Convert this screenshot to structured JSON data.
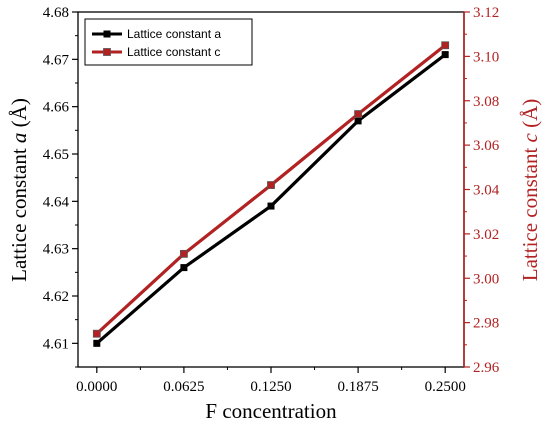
{
  "chart_data": {
    "type": "line",
    "x": [
      0.0,
      0.0625,
      0.125,
      0.1875,
      0.25
    ],
    "x_tick_labels": [
      "0.0000",
      "0.0625",
      "0.1250",
      "0.1875",
      "0.2500"
    ],
    "xlabel": "F concentration",
    "ylabel_left_prefix": "Lattice constant ",
    "ylabel_left_var": "a",
    "ylabel_left_unit": " (Å)",
    "ylabel_right_prefix": "Lattice constant ",
    "ylabel_right_var": "c",
    "ylabel_right_unit": " (Å)",
    "ylim_left": [
      4.605,
      4.68
    ],
    "ylim_right": [
      2.96,
      3.12
    ],
    "y_left_ticks": [
      "4.61",
      "4.62",
      "4.63",
      "4.64",
      "4.65",
      "4.66",
      "4.67",
      "4.68"
    ],
    "y_right_ticks": [
      "2.96",
      "2.98",
      "3.00",
      "3.02",
      "3.04",
      "3.06",
      "3.08",
      "3.10",
      "3.12"
    ],
    "series": [
      {
        "name": "Lattice constant a",
        "axis": "left",
        "color": "#000000",
        "marker": "square",
        "values": [
          4.61,
          4.626,
          4.639,
          4.657,
          4.671
        ]
      },
      {
        "name": "Lattice constant c",
        "axis": "right",
        "color": "#b22222",
        "marker": "square",
        "values": [
          2.975,
          3.011,
          3.042,
          3.074,
          3.105
        ]
      }
    ],
    "legend_placement": "top-left",
    "grid": false
  },
  "colors": {
    "left_axis": "#000000",
    "right_axis": "#b22222"
  }
}
